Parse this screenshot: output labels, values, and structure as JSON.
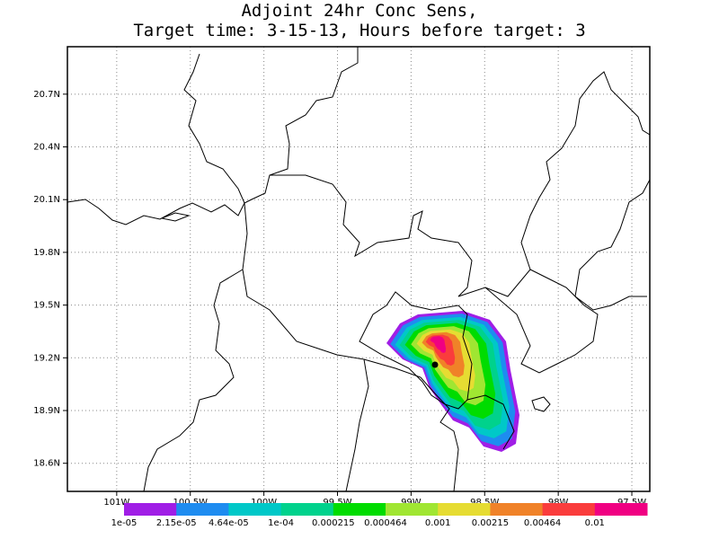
{
  "title": [
    "Adjoint 24hr Conc Sens,",
    "Target time: 3-15-13, Hours before target: 3"
  ],
  "map": {
    "xlim": [
      -101.335,
      -97.378
    ],
    "ylim": [
      18.44,
      20.97
    ],
    "grid": true,
    "xticks": [
      {
        "value": -101,
        "label": "101W"
      },
      {
        "value": -100.5,
        "label": "100.5W"
      },
      {
        "value": -100,
        "label": "100W"
      },
      {
        "value": -99.5,
        "label": "99.5W"
      },
      {
        "value": -99,
        "label": "99W"
      },
      {
        "value": -98.5,
        "label": "98.5W"
      },
      {
        "value": -98,
        "label": "98W"
      },
      {
        "value": -97.5,
        "label": "97.5W"
      }
    ],
    "yticks": [
      {
        "value": 18.6,
        "label": "18.6N"
      },
      {
        "value": 18.9,
        "label": "18.9N"
      },
      {
        "value": 19.2,
        "label": "19.2N"
      },
      {
        "value": 19.5,
        "label": "19.5N"
      },
      {
        "value": 19.8,
        "label": "19.8N"
      },
      {
        "value": 20.1,
        "label": "20.1N"
      },
      {
        "value": 20.4,
        "label": "20.4N"
      },
      {
        "value": 20.7,
        "label": "20.7N"
      }
    ]
  },
  "colorbar": {
    "colors": [
      "#a01ee6",
      "#1e8cf0",
      "#00c8c8",
      "#00d28c",
      "#00dc00",
      "#a0e632",
      "#e6dc32",
      "#f08228",
      "#fa3c3c",
      "#f00082"
    ],
    "levels": [
      {
        "value": 1e-05,
        "label": "1e-05"
      },
      {
        "value": 2.15e-05,
        "label": "2.15e-05"
      },
      {
        "value": 4.64e-05,
        "label": "4.64e-05"
      },
      {
        "value": 0.0001,
        "label": "1e-04"
      },
      {
        "value": 0.000215,
        "label": "0.000215"
      },
      {
        "value": 0.000464,
        "label": "0.000464"
      },
      {
        "value": 0.001,
        "label": "0.001"
      },
      {
        "value": 0.00215,
        "label": "0.00215"
      },
      {
        "value": 0.00464,
        "label": "0.00464"
      },
      {
        "value": 0.01,
        "label": "0.01"
      }
    ]
  }
}
